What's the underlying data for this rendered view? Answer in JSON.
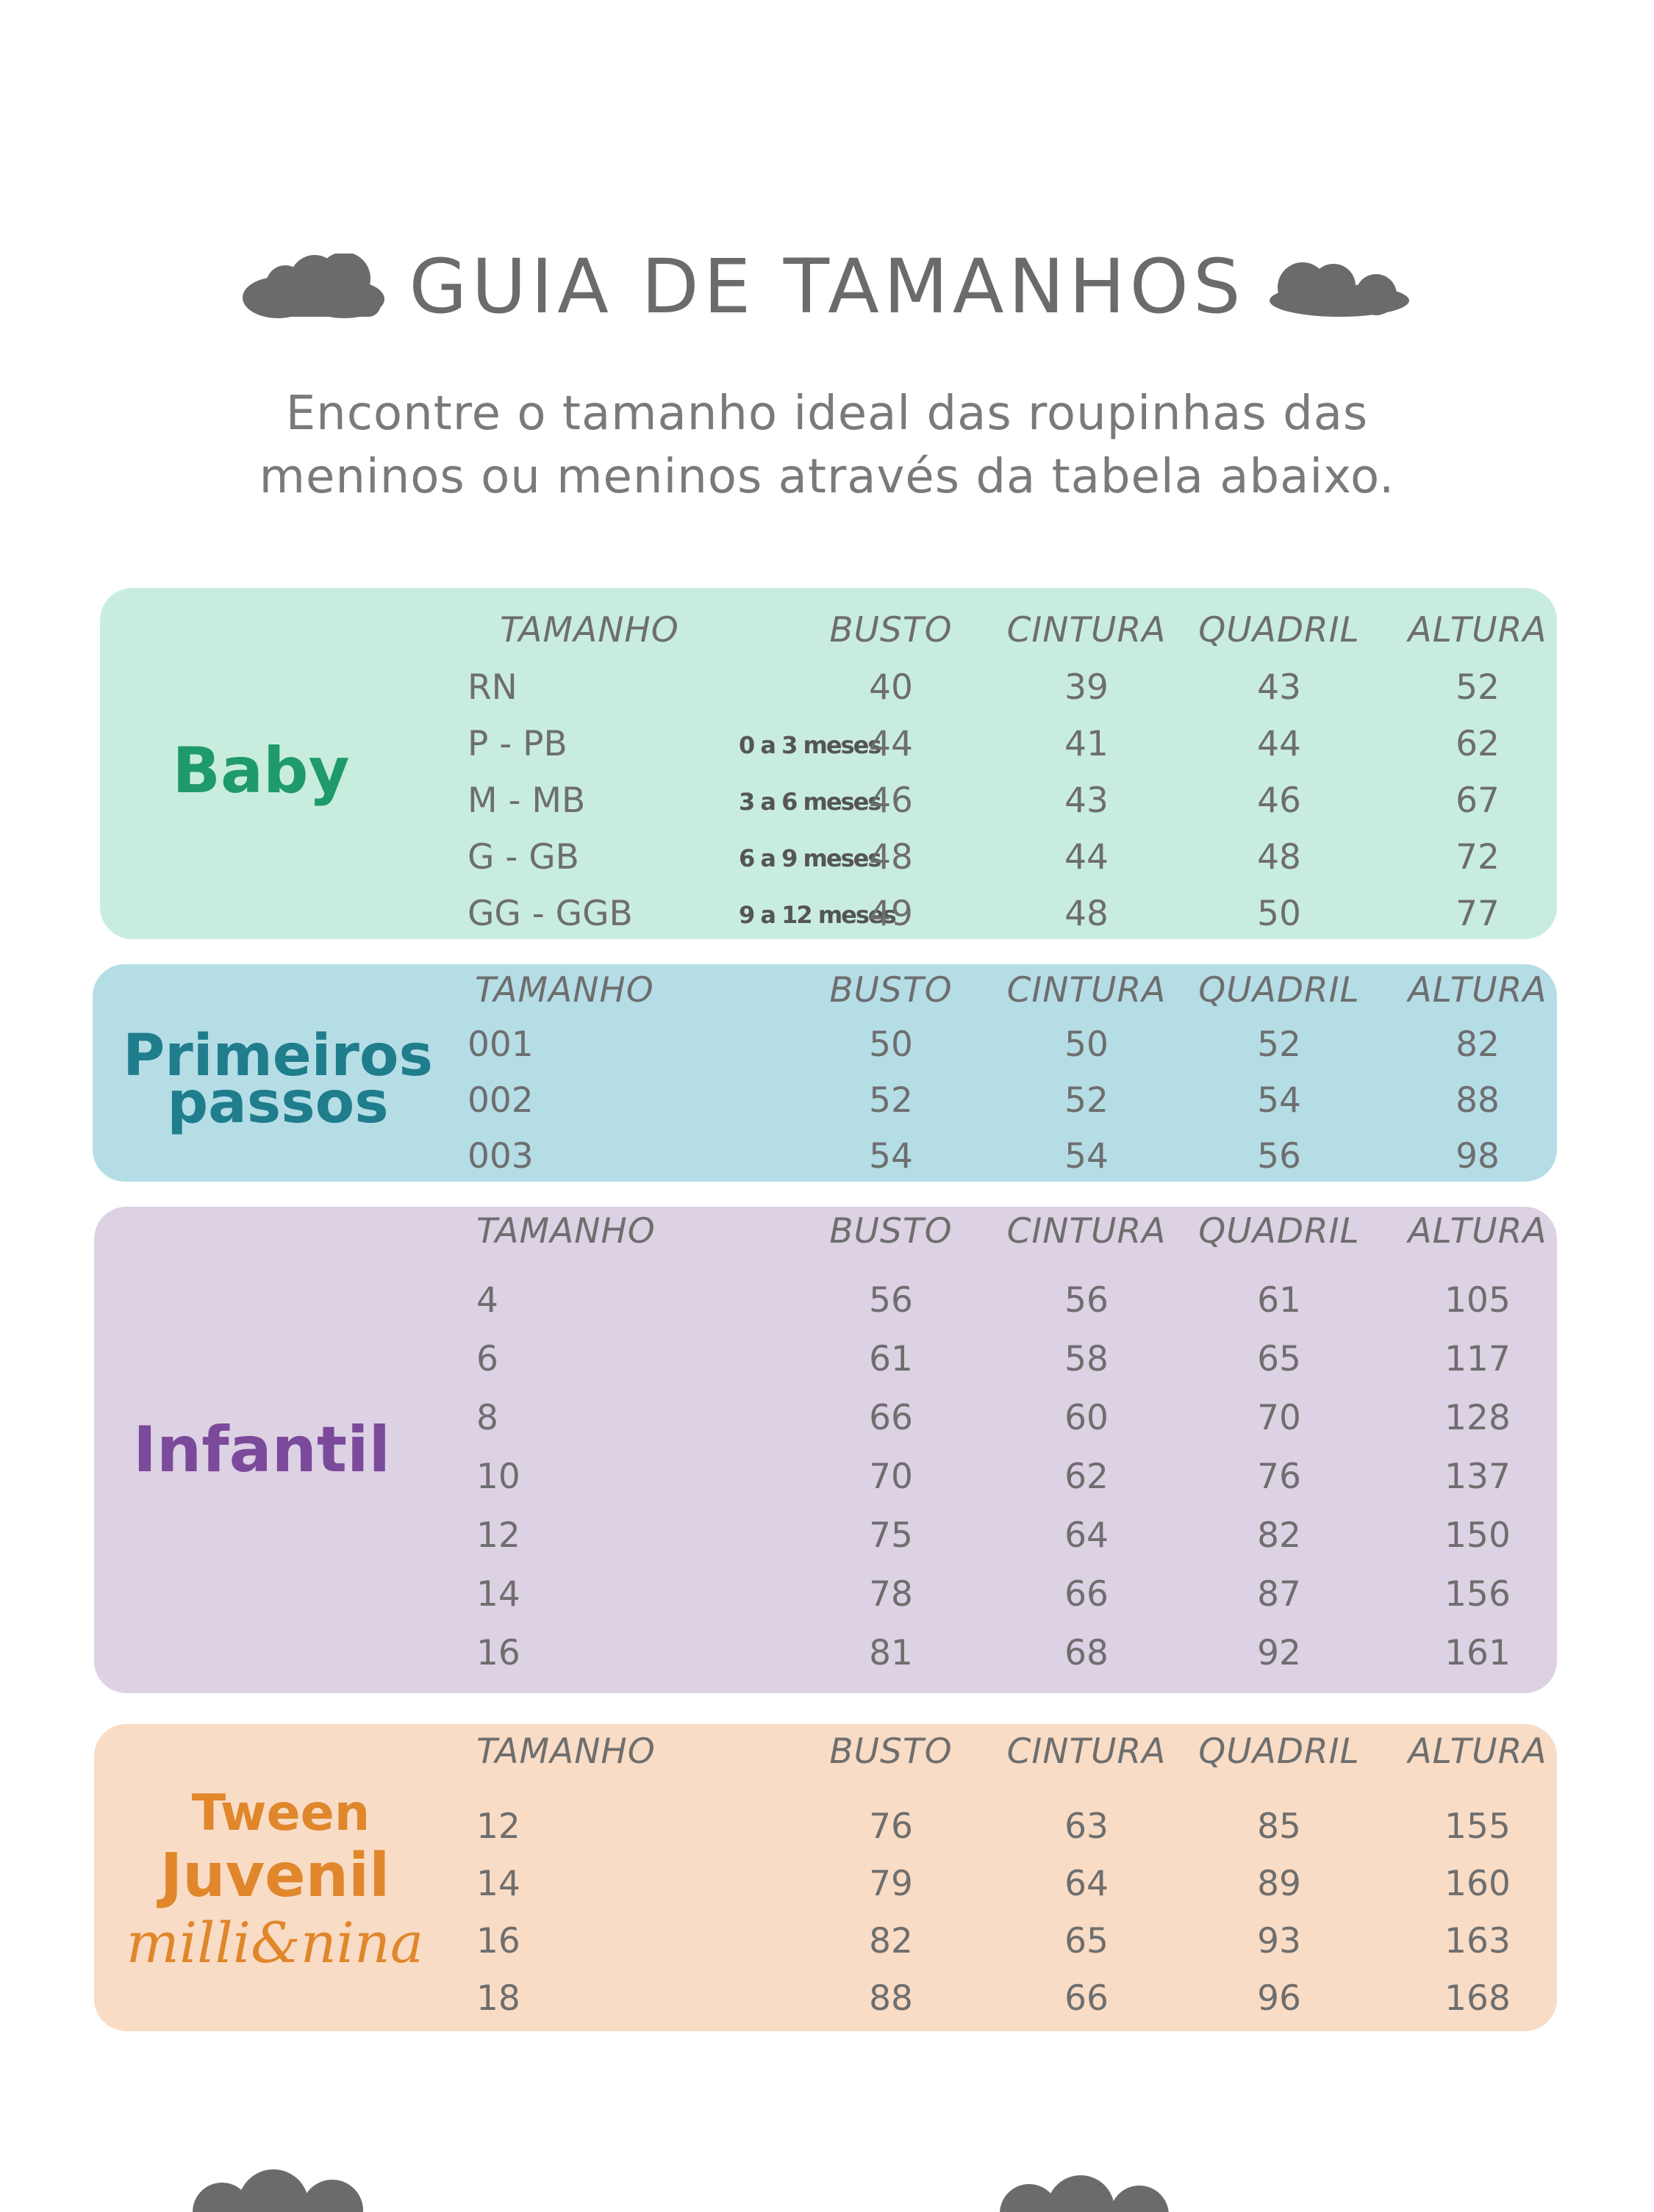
{
  "header": {
    "title": "GUIA DE TAMANHOS",
    "subtitle_line1": "Encontre o tamanho ideal das roupinhas das",
    "subtitle_line2": "meninos ou meninos através da tabela abaixo."
  },
  "columns": [
    "TAMANHO",
    "BUSTO",
    "CINTURA",
    "QUADRIL",
    "ALTURA"
  ],
  "sections": {
    "baby": {
      "label": "Baby",
      "color": "#1f9a6a",
      "rows": [
        {
          "size": "RN",
          "range": "",
          "busto": "40",
          "cintura": "39",
          "quadril": "43",
          "altura": "52"
        },
        {
          "size": "P - PB",
          "range": "0 a 3 meses",
          "busto": "44",
          "cintura": "41",
          "quadril": "44",
          "altura": "62"
        },
        {
          "size": "M - MB",
          "range": "3 a 6 meses",
          "busto": "46",
          "cintura": "43",
          "quadril": "46",
          "altura": "67"
        },
        {
          "size": "G - GB",
          "range": "6 a 9 meses",
          "busto": "48",
          "cintura": "44",
          "quadril": "48",
          "altura": "72"
        },
        {
          "size": "GG - GGB",
          "range": "9 a 12 meses",
          "busto": "49",
          "cintura": "48",
          "quadril": "50",
          "altura": "77"
        }
      ]
    },
    "primeiros": {
      "label_line1": "Primeiros",
      "label_line2": "passos",
      "color": "#1f7d8c",
      "rows": [
        {
          "size": "001",
          "busto": "50",
          "cintura": "50",
          "quadril": "52",
          "altura": "82"
        },
        {
          "size": "002",
          "busto": "52",
          "cintura": "52",
          "quadril": "54",
          "altura": "88"
        },
        {
          "size": "003",
          "busto": "54",
          "cintura": "54",
          "quadril": "56",
          "altura": "98"
        }
      ]
    },
    "infantil": {
      "label": "Infantil",
      "color": "#7b4a9a",
      "rows": [
        {
          "size": "4",
          "busto": "56",
          "cintura": "56",
          "quadril": "61",
          "altura": "105"
        },
        {
          "size": "6",
          "busto": "61",
          "cintura": "58",
          "quadril": "65",
          "altura": "117"
        },
        {
          "size": "8",
          "busto": "66",
          "cintura": "60",
          "quadril": "70",
          "altura": "128"
        },
        {
          "size": "10",
          "busto": "70",
          "cintura": "62",
          "quadril": "76",
          "altura": "137"
        },
        {
          "size": "12",
          "busto": "75",
          "cintura": "64",
          "quadril": "82",
          "altura": "150"
        },
        {
          "size": "14",
          "busto": "78",
          "cintura": "66",
          "quadril": "87",
          "altura": "156"
        },
        {
          "size": "16",
          "busto": "81",
          "cintura": "68",
          "quadril": "92",
          "altura": "161"
        }
      ]
    },
    "tween": {
      "label_line1": "Tween",
      "label_line2": "Juvenil",
      "label_line3": "milli&nina",
      "color": "#e0862b",
      "rows": [
        {
          "size": "12",
          "busto": "76",
          "cintura": "63",
          "quadril": "85",
          "altura": "155"
        },
        {
          "size": "14",
          "busto": "79",
          "cintura": "64",
          "quadril": "89",
          "altura": "160"
        },
        {
          "size": "16",
          "busto": "82",
          "cintura": "65",
          "quadril": "93",
          "altura": "163"
        },
        {
          "size": "18",
          "busto": "88",
          "cintura": "66",
          "quadril": "96",
          "altura": "168"
        }
      ]
    }
  }
}
